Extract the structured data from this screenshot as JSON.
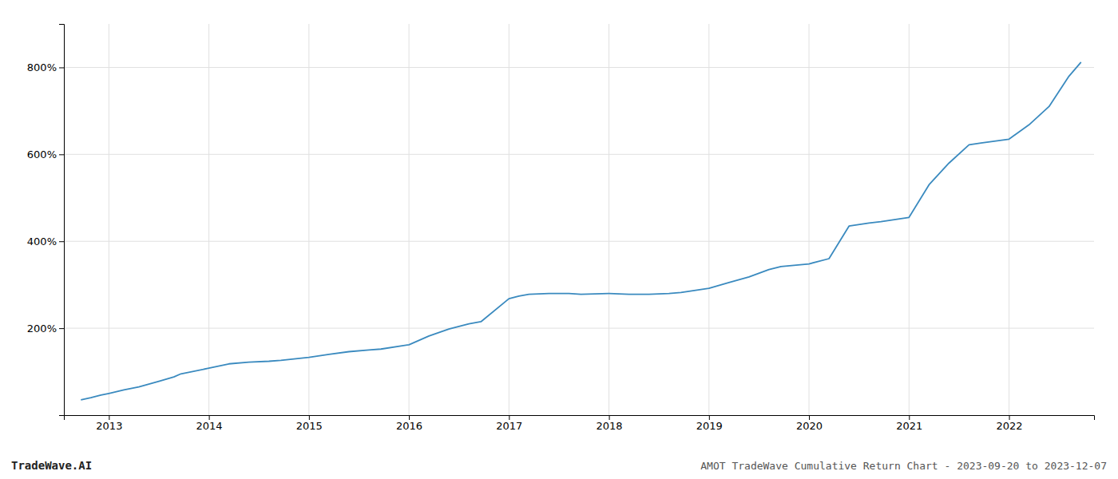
{
  "chart_data": {
    "type": "line",
    "title": "AMOT TradeWave Cumulative Return Chart - 2023-09-20 to 2023-12-07",
    "annotations": [
      "TradeWave.AI"
    ],
    "color": "#3a8abf",
    "grid": true,
    "x": [
      2012.72,
      2012.82,
      2012.92,
      2013.0,
      2013.15,
      2013.3,
      2013.5,
      2013.65,
      2013.72,
      2014.0,
      2014.2,
      2014.4,
      2014.6,
      2014.72,
      2015.0,
      2015.2,
      2015.4,
      2015.6,
      2015.72,
      2016.0,
      2016.2,
      2016.4,
      2016.6,
      2016.72,
      2017.0,
      2017.1,
      2017.2,
      2017.4,
      2017.6,
      2017.72,
      2018.0,
      2018.2,
      2018.4,
      2018.6,
      2018.72,
      2019.0,
      2019.2,
      2019.4,
      2019.6,
      2019.72,
      2020.0,
      2020.2,
      2020.4,
      2020.6,
      2020.72,
      2021.0,
      2021.2,
      2021.4,
      2021.6,
      2021.72,
      2022.0,
      2022.2,
      2022.4,
      2022.6,
      2022.72
    ],
    "values": [
      35,
      40,
      46,
      50,
      58,
      65,
      78,
      88,
      95,
      108,
      118,
      122,
      124,
      126,
      133,
      140,
      146,
      150,
      152,
      162,
      182,
      198,
      210,
      215,
      268,
      274,
      278,
      280,
      280,
      278,
      280,
      278,
      278,
      280,
      282,
      292,
      305,
      318,
      335,
      342,
      348,
      360,
      435,
      442,
      445,
      455,
      530,
      580,
      622,
      626,
      635,
      668,
      710,
      780,
      812
    ],
    "xlim": [
      2012.55,
      2022.85
    ],
    "xticks": [
      2013,
      2014,
      2015,
      2016,
      2017,
      2018,
      2019,
      2020,
      2021,
      2022
    ],
    "ylim": [
      0,
      900
    ],
    "yticks": [
      {
        "value": 200,
        "label": "200%"
      },
      {
        "value": 400,
        "label": "400%"
      },
      {
        "value": 600,
        "label": "600%"
      },
      {
        "value": 800,
        "label": "800%"
      }
    ]
  }
}
